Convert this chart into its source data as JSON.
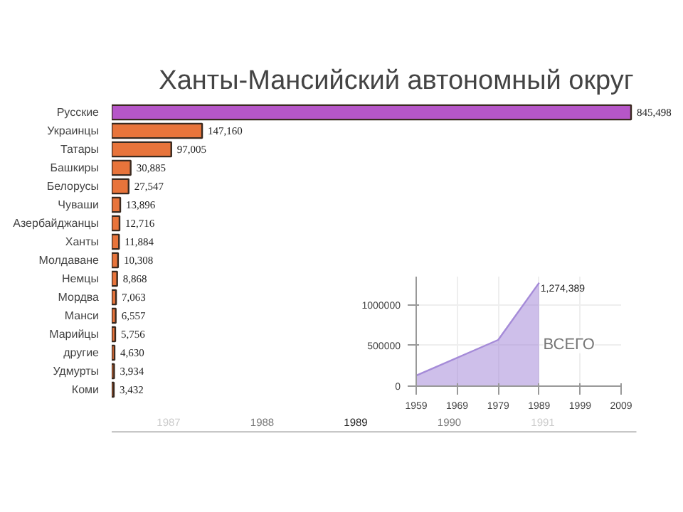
{
  "chart_data": [
    {
      "type": "bar",
      "orientation": "horizontal",
      "title": "Ханты-Мансийский автономный округ",
      "categories": [
        "Русские",
        "Украинцы",
        "Татары",
        "Башкиры",
        "Белорусы",
        "Чуваши",
        "Азербайджанцы",
        "Ханты",
        "Молдаване",
        "Немцы",
        "Мордва",
        "Манси",
        "Марийцы",
        "другие",
        "Удмурты",
        "Коми"
      ],
      "values": [
        845498,
        147160,
        97005,
        30885,
        27547,
        13896,
        12716,
        11884,
        10308,
        8868,
        7063,
        6557,
        5756,
        4630,
        3934,
        3432
      ],
      "colors": [
        "#b656c8",
        "#e8743b",
        "#e8743b",
        "#e8743b",
        "#e8743b",
        "#e8743b",
        "#e8743b",
        "#e8743b",
        "#e8743b",
        "#e8743b",
        "#e8743b",
        "#e8743b",
        "#e8743b",
        "#e8743b",
        "#e8743b",
        "#e8743b"
      ],
      "value_labels": [
        "845,498",
        "147,160",
        "97,005",
        "30,885",
        "27,547",
        "13,896",
        "12,716",
        "11,884",
        "10,308",
        "8,868",
        "7,063",
        "6,557",
        "5,756",
        "4,630",
        "3,934",
        "3,432"
      ],
      "grid": false,
      "tick_labels": "y",
      "annotations": [
        "1987",
        "1988",
        "1989",
        "1990",
        "1991"
      ]
    },
    {
      "type": "area",
      "x": [
        1959,
        1979,
        1989
      ],
      "values": [
        130000,
        570000,
        1274389
      ],
      "value_labels": [
        null,
        null,
        "1,274,389"
      ],
      "color": "#a58bd8",
      "xlim": [
        1959,
        2009
      ],
      "xticks": [
        1959,
        1969,
        1979,
        1989,
        1999,
        2009
      ],
      "ylim": [
        0,
        1350000
      ],
      "yticks": [
        {
          "value": 0,
          "label": "0"
        },
        {
          "value": 500000,
          "label": "500000"
        },
        {
          "value": 1000000,
          "label": "1000000"
        }
      ],
      "grid": true,
      "annotations": [
        "ВСЕГО"
      ]
    }
  ]
}
